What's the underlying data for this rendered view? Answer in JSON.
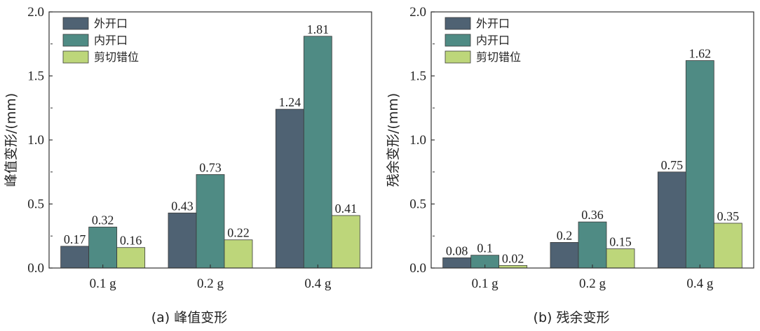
{
  "colors": {
    "outer": "#4f6273",
    "inner": "#4f8b84",
    "shear": "#bdd67a",
    "axis": "#333333"
  },
  "chart_data": [
    {
      "type": "bar",
      "caption": "(a) 峰值变形",
      "ylabel": "峰值变形/(mm)",
      "xlabel": "",
      "categories": [
        "0.1 g",
        "0.2 g",
        "0.4 g"
      ],
      "ylim": [
        0,
        2.0
      ],
      "yticks": [
        "0.0",
        "0.5",
        "1.0",
        "1.5",
        "2.0"
      ],
      "legend_position": "top-left",
      "series": [
        {
          "name": "外开口",
          "values": [
            0.17,
            0.43,
            1.24
          ],
          "labels": [
            "0.17",
            "0.43",
            "1.24"
          ]
        },
        {
          "name": "内开口",
          "values": [
            0.32,
            0.73,
            1.81
          ],
          "labels": [
            "0.32",
            "0.73",
            "1.81"
          ]
        },
        {
          "name": "剪切错位",
          "values": [
            0.16,
            0.22,
            0.41
          ],
          "labels": [
            "0.16",
            "0.22",
            "0.41"
          ]
        }
      ]
    },
    {
      "type": "bar",
      "caption": "(b) 残余变形",
      "ylabel": "残余变形/(mm)",
      "xlabel": "",
      "categories": [
        "0.1 g",
        "0.2 g",
        "0.4 g"
      ],
      "ylim": [
        0,
        2.0
      ],
      "yticks": [
        "0.0",
        "0.5",
        "1.0",
        "1.5",
        "2.0"
      ],
      "legend_position": "top-left",
      "series": [
        {
          "name": "外开口",
          "values": [
            0.08,
            0.2,
            0.75
          ],
          "labels": [
            "0.08",
            "0.2",
            "0.75"
          ]
        },
        {
          "name": "内开口",
          "values": [
            0.1,
            0.36,
            1.62
          ],
          "labels": [
            "0.1",
            "0.36",
            "1.62"
          ]
        },
        {
          "name": "剪切错位",
          "values": [
            0.02,
            0.15,
            0.35
          ],
          "labels": [
            "0.02",
            "0.15",
            "0.35"
          ]
        }
      ]
    }
  ]
}
